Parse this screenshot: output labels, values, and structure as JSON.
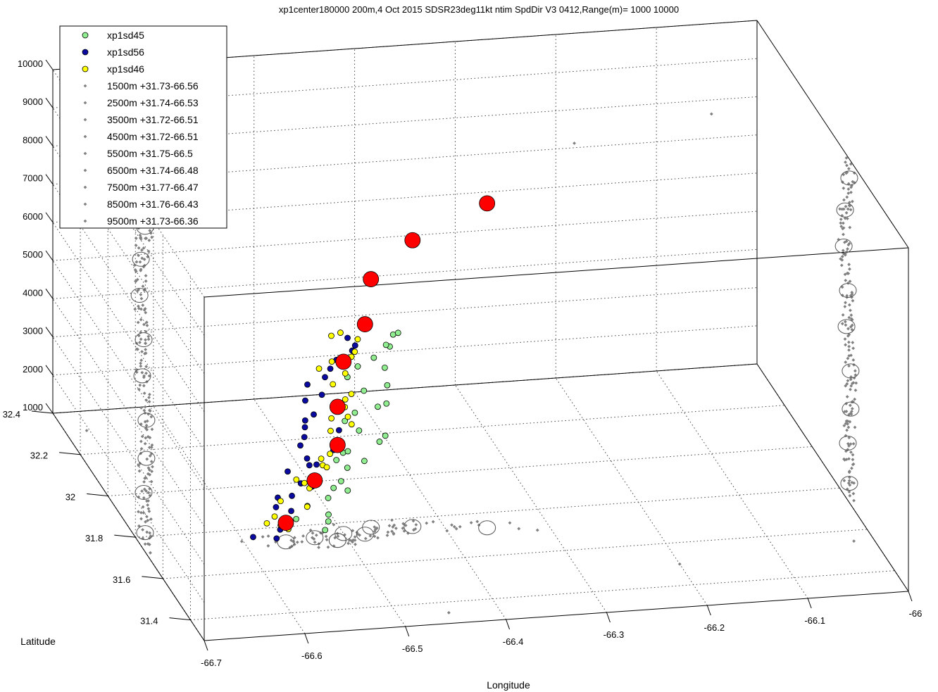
{
  "chart_data": {
    "type": "scatter",
    "title": "xp1center180000 200m,4 Oct 2015 SDSR23deg11kt ntim SpdDir V3 0412,Range(m)=  1000  10000",
    "xlabel": "Longitude",
    "ylabel": "Latitude",
    "zlabel": "",
    "xlim": [
      -66.7,
      -66.0
    ],
    "ylim": [
      31.3,
      32.4
    ],
    "zlim": [
      1000,
      10000
    ],
    "x_ticks": [
      "-66.7",
      "-66.6",
      "-66.5",
      "-66.4",
      "-66.3",
      "-66.2",
      "-66.1",
      "-66"
    ],
    "y_ticks": [
      "31.4",
      "31.6",
      "31.8",
      "32",
      "32.2",
      "32.4"
    ],
    "z_ticks": [
      "1000",
      "2000",
      "3000",
      "4000",
      "5000",
      "6000",
      "7000",
      "8000",
      "9000",
      "10000"
    ],
    "grid": true,
    "legend_position": "top-left",
    "legend": [
      {
        "label": "xp1sd45",
        "color": "#90ee90",
        "marker": "filled-circle"
      },
      {
        "label": "xp1sd56",
        "color": "#0a0aa0",
        "marker": "filled-circle"
      },
      {
        "label": "xp1sd46",
        "color": "#ffff00",
        "marker": "filled-circle"
      },
      {
        "label": "1500m +31.73-66.56",
        "color": "#808080",
        "marker": "diamond"
      },
      {
        "label": "2500m +31.74-66.53",
        "color": "#808080",
        "marker": "diamond"
      },
      {
        "label": "3500m +31.72-66.51",
        "color": "#808080",
        "marker": "diamond"
      },
      {
        "label": "4500m +31.72-66.51",
        "color": "#808080",
        "marker": "diamond"
      },
      {
        "label": "5500m +31.75-66.5",
        "color": "#808080",
        "marker": "diamond"
      },
      {
        "label": "6500m +31.74-66.48",
        "color": "#808080",
        "marker": "diamond"
      },
      {
        "label": "7500m +31.77-66.47",
        "color": "#808080",
        "marker": "diamond"
      },
      {
        "label": "8500m +31.76-66.43",
        "color": "#808080",
        "marker": "diamond"
      },
      {
        "label": "9500m +31.73-66.36",
        "color": "#808080",
        "marker": "diamond"
      }
    ],
    "centers": [
      {
        "lon": -66.56,
        "lat": 31.73,
        "z": 1500
      },
      {
        "lon": -66.53,
        "lat": 31.74,
        "z": 2500
      },
      {
        "lon": -66.51,
        "lat": 31.72,
        "z": 3500
      },
      {
        "lon": -66.51,
        "lat": 31.72,
        "z": 4500
      },
      {
        "lon": -66.5,
        "lat": 31.75,
        "z": 5500
      },
      {
        "lon": -66.48,
        "lat": 31.74,
        "z": 6500
      },
      {
        "lon": -66.47,
        "lat": 31.77,
        "z": 7500
      },
      {
        "lon": -66.43,
        "lat": 31.76,
        "z": 8500
      },
      {
        "lon": -66.36,
        "lat": 31.73,
        "z": 9500
      }
    ],
    "colors": {
      "xp1sd45": "#90ee90",
      "xp1sd56": "#0a0aa0",
      "xp1sd46": "#ffff00",
      "projection": "#808080",
      "center": "#ff0000"
    }
  }
}
